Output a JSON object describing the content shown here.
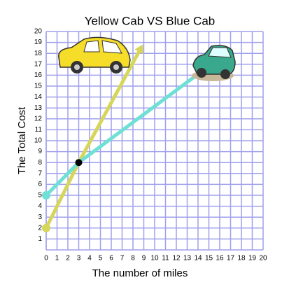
{
  "chart_data": {
    "type": "line",
    "title": "Yellow Cab VS Blue Cab",
    "xlabel": "The number of miles",
    "ylabel": "The Total Cost",
    "xlim": [
      0,
      20
    ],
    "ylim": [
      0,
      20
    ],
    "xticks": [
      0,
      1,
      2,
      3,
      4,
      5,
      6,
      7,
      8,
      9,
      10,
      11,
      12,
      13,
      14,
      15,
      16,
      17,
      18,
      19,
      20
    ],
    "yticks": [
      1,
      2,
      3,
      4,
      5,
      6,
      7,
      8,
      9,
      10,
      11,
      12,
      13,
      14,
      15,
      16,
      17,
      18,
      19,
      20
    ],
    "grid": true,
    "grid_color": "#a0a0ec",
    "series": [
      {
        "color": "#d6d65a",
        "x": [
          0,
          3,
          8.8
        ],
        "values": [
          2,
          8,
          18.6
        ]
      },
      {
        "color": "#6ee0d6",
        "x": [
          0,
          3,
          15.5
        ],
        "values": [
          5,
          8,
          17.2
        ]
      }
    ],
    "points": [
      {
        "x": 3,
        "y": 8,
        "color": "#000000"
      }
    ]
  }
}
